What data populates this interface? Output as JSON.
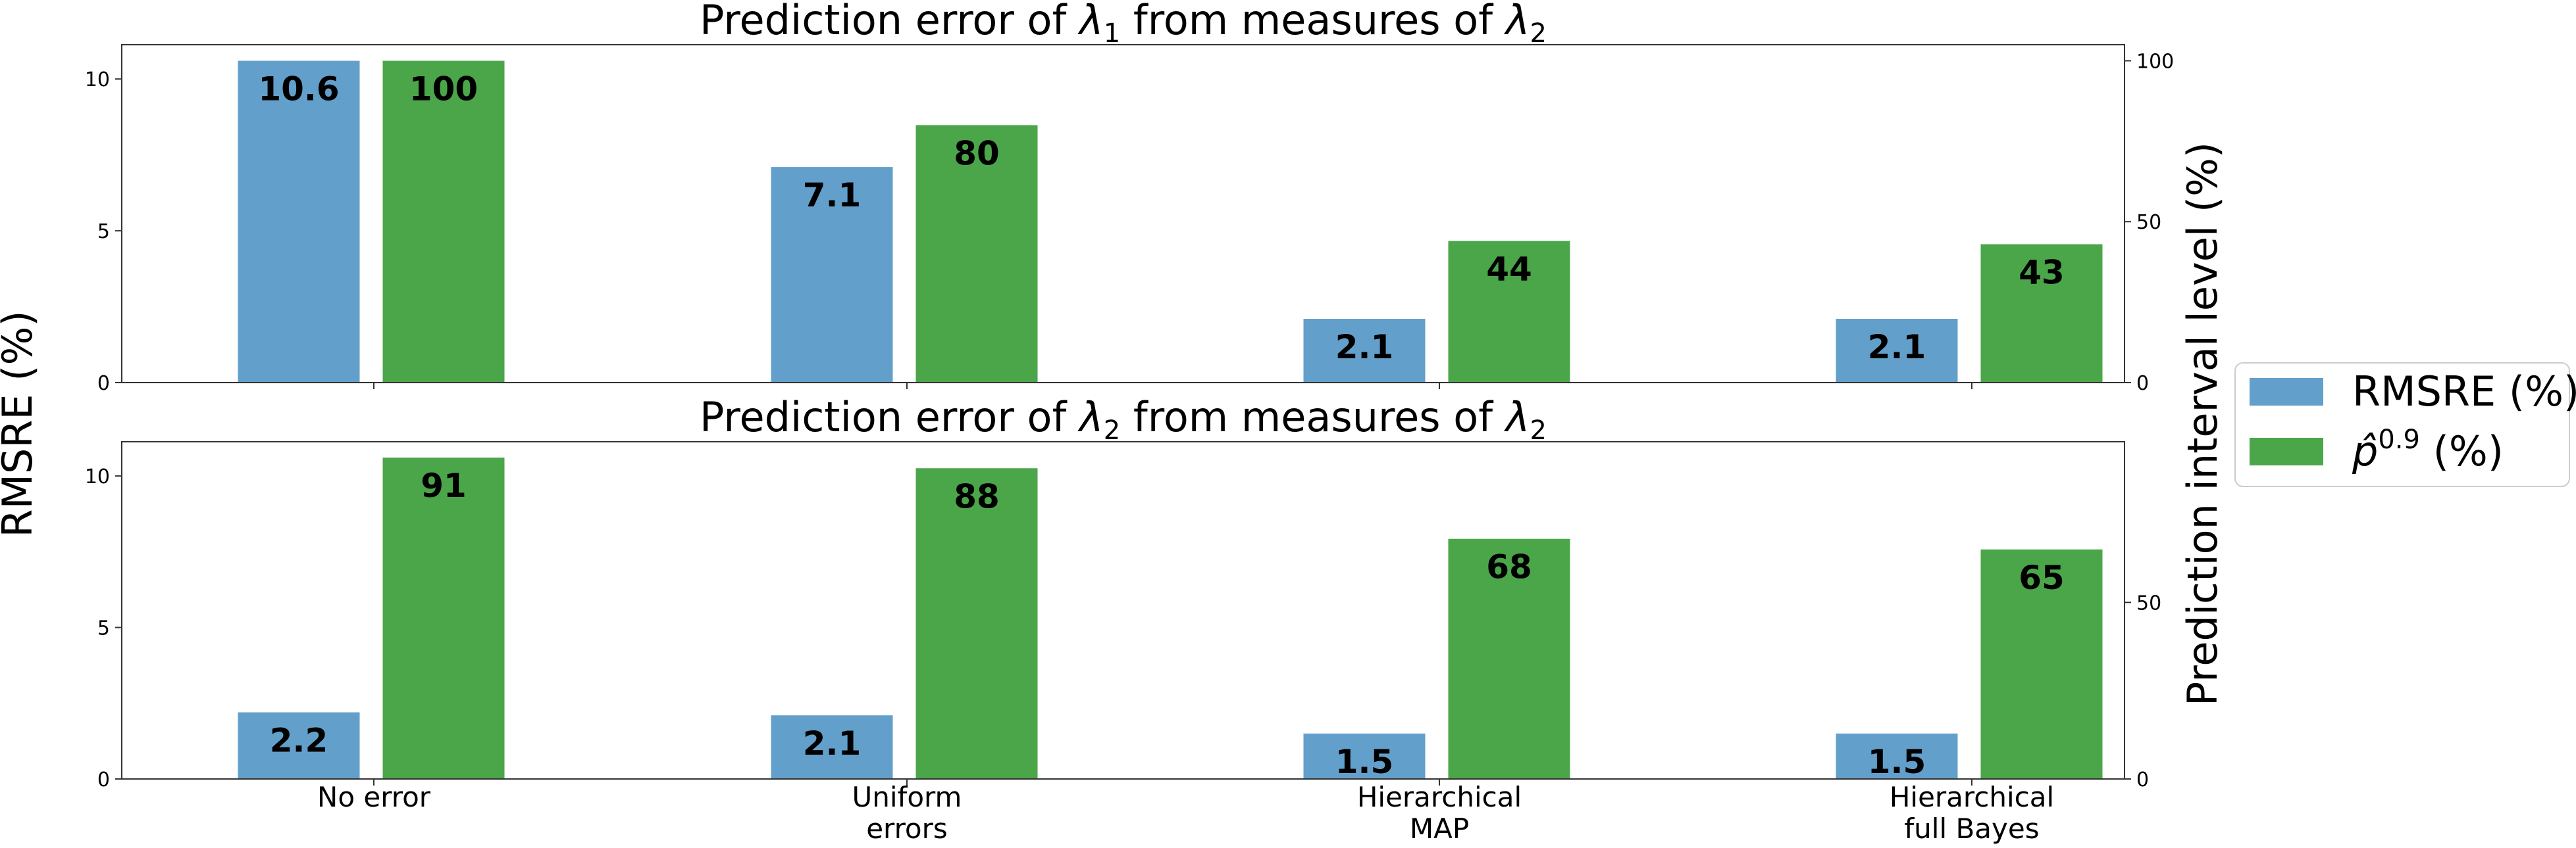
{
  "colors": {
    "rmsre": "#639fcb",
    "p09": "#4ba64a"
  },
  "ylabel_left": "RMSRE (%)",
  "ylabel_right": "Prediction interval level (%)",
  "legend": {
    "placement": "center-right",
    "items": [
      {
        "label": "RMSRE (%)",
        "color": "#639fcb"
      },
      {
        "label_base": "p̂",
        "label_sup": "0.9",
        "label_tail": " (%)",
        "color": "#4ba64a"
      }
    ]
  },
  "chart_data": [
    {
      "type": "bar",
      "title_pre": "Prediction error of ",
      "title_var1": "λ",
      "title_sub1": "1",
      "title_mid": " from measures of ",
      "title_var2": "λ",
      "title_sub2": "2",
      "categories": [
        "No error",
        "Uniform errors",
        "Hierarchical MAP",
        "Hierarchical full Bayes"
      ],
      "series": [
        {
          "name": "RMSRE (%)",
          "axis": "left",
          "values": [
            10.6,
            7.1,
            2.1,
            2.1
          ],
          "labels": [
            "10.6",
            "7.1",
            "2.1",
            "2.1"
          ]
        },
        {
          "name": "p̂0.9 (%)",
          "axis": "right",
          "values": [
            100,
            80,
            44,
            43
          ],
          "labels": [
            "100",
            "80",
            "44",
            "43"
          ]
        }
      ],
      "ylim_left": [
        0,
        11.13
      ],
      "yticks_left": [
        "0",
        "5",
        "10"
      ],
      "ylim_right": [
        0,
        105
      ],
      "yticks_right": [
        "0",
        "50",
        "100"
      ]
    },
    {
      "type": "bar",
      "title_pre": "Prediction error of ",
      "title_var1": "λ",
      "title_sub1": "2",
      "title_mid": " from measures of ",
      "title_var2": "λ",
      "title_sub2": "2",
      "categories": [
        "No error",
        "Uniform errors",
        "Hierarchical MAP",
        "Hierarchical full Bayes"
      ],
      "category_lines": [
        [
          "No error"
        ],
        [
          "Uniform",
          "errors"
        ],
        [
          "Hierarchical",
          "MAP"
        ],
        [
          "Hierarchical",
          "full Bayes"
        ]
      ],
      "series": [
        {
          "name": "RMSRE (%)",
          "axis": "left",
          "values": [
            2.2,
            2.1,
            1.5,
            1.5
          ],
          "labels": [
            "2.2",
            "2.1",
            "1.5",
            "1.5"
          ]
        },
        {
          "name": "p̂0.9 (%)",
          "axis": "right",
          "values": [
            91,
            88,
            68,
            65
          ],
          "labels": [
            "91",
            "88",
            "68",
            "65"
          ]
        }
      ],
      "ylim_left": [
        0,
        11.13
      ],
      "yticks_left": [
        "0",
        "5",
        "10"
      ],
      "ylim_right": [
        0,
        95.5
      ],
      "yticks_right": [
        "0",
        "50"
      ]
    }
  ]
}
